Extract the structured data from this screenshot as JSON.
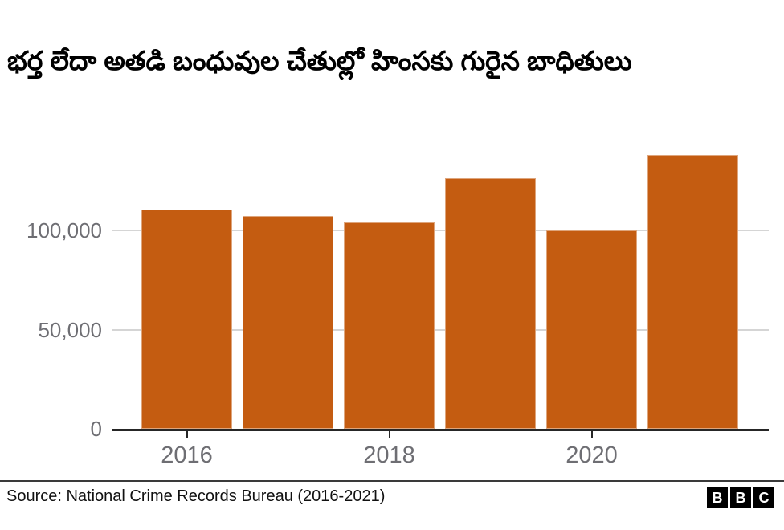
{
  "title": "భర్త లేదా అతడి బంధువుల చేతుల్లో హింసకు గురైన బాధితులు",
  "chart_data": {
    "type": "bar",
    "categories": [
      "2016",
      "2017",
      "2018",
      "2019",
      "2020",
      "2021"
    ],
    "values": [
      110500,
      107300,
      104100,
      126400,
      100000,
      138200
    ],
    "title": "భర్త లేదా అతడి బంధువుల చేతుల్లో హింసకు గురైన బాధితులు",
    "xlabel": "",
    "ylabel": "",
    "ylim": [
      0,
      151400
    ],
    "y_ticks": [
      {
        "value": 0,
        "label": "0"
      },
      {
        "value": 50000,
        "label": "50,000"
      },
      {
        "value": 100000,
        "label": "100,000"
      }
    ],
    "x_ticks": [
      {
        "index": 0,
        "label": "2016"
      },
      {
        "index": 2,
        "label": "2018"
      },
      {
        "index": 4,
        "label": "2020"
      }
    ],
    "grid": true,
    "legend_position": "none",
    "bar_color": "#c45c11"
  },
  "footer": {
    "source": "Source: National Crime Records Bureau (2016-2021)",
    "logo_letters": [
      "B",
      "B",
      "C"
    ]
  },
  "colors": {
    "background": "#ffffff",
    "bar": "#c45c11",
    "gridline": "#d5d5d5",
    "axis_line": "#262626",
    "axis_label": "#6e6e73",
    "title_text": "#000000",
    "source_text": "#111111",
    "logo_bg": "#000000",
    "logo_text": "#ffffff"
  }
}
